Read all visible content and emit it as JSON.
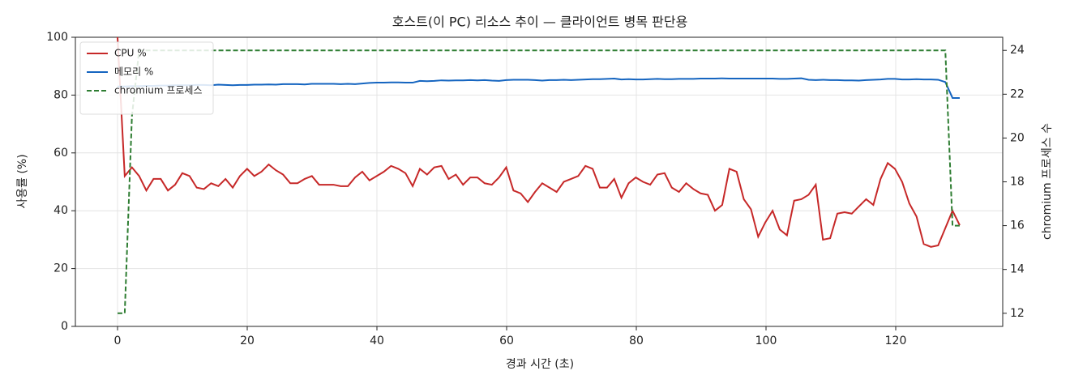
{
  "chart_data": {
    "type": "line",
    "title": "호스트(이 PC) 리소스 추이 — 클라이언트 병목 판단용",
    "x_label": "경과 시간 (초)",
    "y_label": "사용률 (%)",
    "y2_label": "chromium 프로세스 수",
    "x": [
      0,
      1.11,
      2.22,
      3.33,
      4.44,
      5.55,
      6.66,
      7.77,
      8.88,
      9.99,
      11.1,
      12.21,
      13.32,
      14.43,
      15.54,
      16.65,
      17.76,
      18.87,
      19.98,
      21.09,
      22.2,
      23.31,
      24.42,
      25.53,
      26.64,
      27.75,
      28.86,
      29.97,
      31.08,
      32.19,
      33.3,
      34.41,
      35.52,
      36.63,
      37.74,
      38.85,
      39.96,
      41.07,
      42.18,
      43.29,
      44.4,
      45.51,
      46.62,
      47.73,
      48.84,
      49.95,
      51.06,
      52.17,
      53.28,
      54.39,
      55.5,
      56.61,
      57.72,
      58.83,
      59.94,
      61.05,
      62.16,
      63.27,
      64.38,
      65.49,
      66.6,
      67.71,
      68.82,
      69.93,
      71.04,
      72.15,
      73.26,
      74.37,
      75.48,
      76.59,
      77.7,
      78.81,
      79.92,
      81.03,
      82.14,
      83.25,
      84.36,
      85.47,
      86.58,
      87.69,
      88.8,
      89.91,
      91.02,
      92.13,
      93.24,
      94.35,
      95.46,
      96.57,
      97.68,
      98.79,
      99.9,
      101.01,
      102.12,
      103.23,
      104.34,
      105.45,
      106.56,
      107.67,
      108.78,
      109.89,
      111,
      112.11,
      113.22,
      114.33,
      115.44,
      116.55,
      117.66,
      118.77,
      119.88,
      120.99,
      122.1,
      123.21,
      124.32,
      125.43,
      126.54,
      127.65,
      128.76,
      129.87
    ],
    "series": [
      {
        "name": "CPU %",
        "color": "#c62828",
        "dash": false,
        "values": [
          100,
          52,
          55,
          52,
          47,
          51,
          51,
          47,
          49,
          53,
          52,
          48,
          47.5,
          49.5,
          48.5,
          51,
          48,
          52,
          54.5,
          52,
          53.5,
          56,
          54,
          52.5,
          49.5,
          49.5,
          51,
          52,
          49,
          49,
          49,
          48.5,
          48.5,
          51.5,
          53.5,
          50.5,
          52,
          53.5,
          55.5,
          54.5,
          53,
          48.5,
          54.5,
          52.5,
          55,
          55.5,
          51,
          52.5,
          49,
          51.5,
          51.5,
          49.5,
          49,
          51.5,
          55,
          47,
          46,
          43,
          46.5,
          49.5,
          48,
          46.5,
          50,
          51,
          52,
          55.5,
          54.5,
          48,
          48,
          51,
          44.5,
          49.5,
          51.5,
          50,
          49,
          52.5,
          53,
          48,
          46.5,
          49.5,
          47.5,
          46,
          45.5,
          40,
          42,
          54.5,
          53.5,
          44,
          40.5,
          31,
          36,
          40,
          33.5,
          31.5,
          43.5,
          44,
          45.5,
          49,
          30,
          30.5,
          39,
          39.5,
          39,
          41.5,
          44,
          42,
          51,
          56.5,
          54.5,
          50,
          42.5,
          38,
          28.5,
          27.5,
          28,
          34,
          40,
          35
        ]
      },
      {
        "name": "메모리 %",
        "color": "#1565c0",
        "dash": false,
        "values": [
          83,
          83,
          83.1,
          83.1,
          83.2,
          83.2,
          83.3,
          83.3,
          83.4,
          83.4,
          83.4,
          83.5,
          83.5,
          83.4,
          83.6,
          83.5,
          83.4,
          83.5,
          83.5,
          83.6,
          83.6,
          83.7,
          83.6,
          83.8,
          83.8,
          83.8,
          83.7,
          83.9,
          83.9,
          83.9,
          83.9,
          83.8,
          83.9,
          83.8,
          84.0,
          84.2,
          84.3,
          84.3,
          84.4,
          84.4,
          84.3,
          84.3,
          84.9,
          84.8,
          84.9,
          85.1,
          85.0,
          85.1,
          85.1,
          85.2,
          85.1,
          85.2,
          85.0,
          84.9,
          85.2,
          85.3,
          85.3,
          85.3,
          85.2,
          85.0,
          85.2,
          85.2,
          85.3,
          85.2,
          85.3,
          85.4,
          85.5,
          85.5,
          85.6,
          85.7,
          85.4,
          85.5,
          85.4,
          85.4,
          85.5,
          85.6,
          85.5,
          85.5,
          85.6,
          85.6,
          85.6,
          85.7,
          85.7,
          85.7,
          85.8,
          85.7,
          85.7,
          85.7,
          85.7,
          85.7,
          85.7,
          85.7,
          85.6,
          85.6,
          85.7,
          85.8,
          85.3,
          85.2,
          85.3,
          85.2,
          85.2,
          85.1,
          85.1,
          85.0,
          85.2,
          85.3,
          85.4,
          85.6,
          85.6,
          85.4,
          85.4,
          85.5,
          85.4,
          85.4,
          85.3,
          84.5,
          79,
          79
        ]
      },
      {
        "name": "chromium 프로세스",
        "color": "#2e7d32",
        "dash": true,
        "axis": "y2",
        "values": [
          12,
          12,
          21,
          24,
          24,
          24,
          24,
          24,
          24,
          24,
          24,
          24,
          24,
          24,
          24,
          24,
          24,
          24,
          24,
          24,
          24,
          24,
          24,
          24,
          24,
          24,
          24,
          24,
          24,
          24,
          24,
          24,
          24,
          24,
          24,
          24,
          24,
          24,
          24,
          24,
          24,
          24,
          24,
          24,
          24,
          24,
          24,
          24,
          24,
          24,
          24,
          24,
          24,
          24,
          24,
          24,
          24,
          24,
          24,
          24,
          24,
          24,
          24,
          24,
          24,
          24,
          24,
          24,
          24,
          24,
          24,
          24,
          24,
          24,
          24,
          24,
          24,
          24,
          24,
          24,
          24,
          24,
          24,
          24,
          24,
          24,
          24,
          24,
          24,
          24,
          24,
          24,
          24,
          24,
          24,
          24,
          24,
          24,
          24,
          24,
          24,
          24,
          24,
          24,
          24,
          24,
          24,
          24,
          24,
          24,
          24,
          24,
          24,
          24,
          24,
          24,
          16,
          16
        ]
      }
    ],
    "xlim": [
      -6.5,
      136.5
    ],
    "xticks": [
      0,
      20,
      40,
      60,
      80,
      100,
      120
    ],
    "ylim": [
      0,
      100
    ],
    "yticks": [
      0,
      20,
      40,
      60,
      80,
      100
    ],
    "y2lim": [
      11.4,
      24.6
    ],
    "y2ticks": [
      12,
      14,
      16,
      18,
      20,
      22,
      24
    ],
    "grid": true,
    "legend": "upper-left"
  }
}
